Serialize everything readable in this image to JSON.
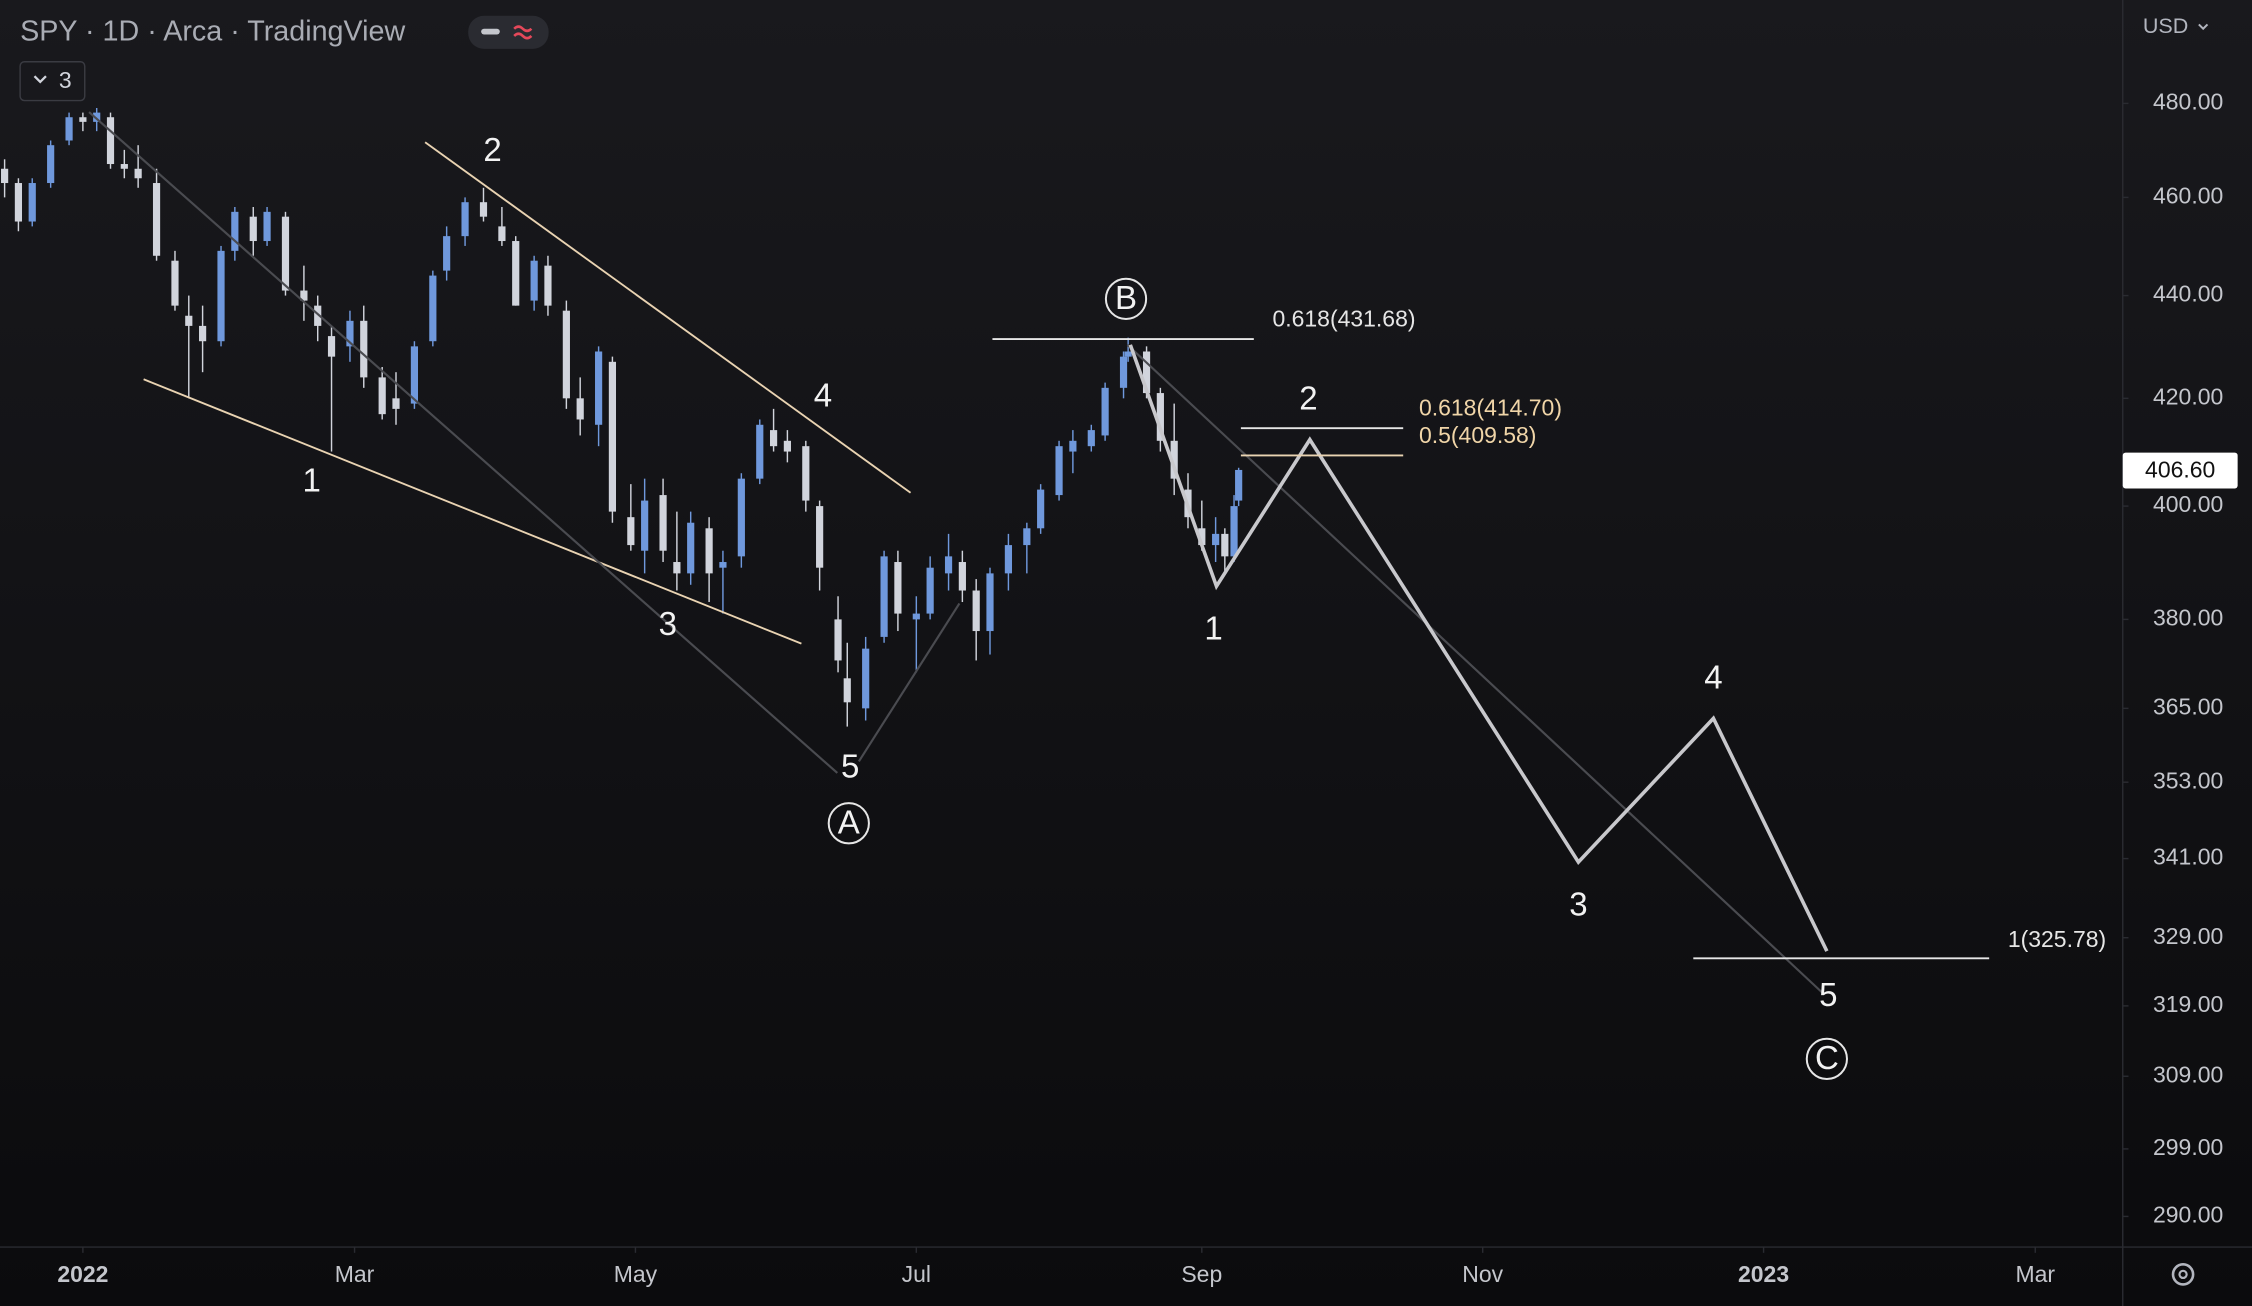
{
  "chart_data": {
    "type": "candlestick",
    "title": "SPY · 1D · Arca · TradingView",
    "indicator_count": "3",
    "currency": "USD",
    "last_price_label": "406.60",
    "log_scale": true,
    "up_color": "#6f98dc",
    "down_color": "#d1d4dc",
    "x": [
      -17,
      -14,
      -11,
      -7,
      -3,
      0,
      3,
      6,
      9,
      12,
      16,
      20,
      23,
      26,
      30,
      33,
      37,
      40,
      44,
      48,
      51,
      54,
      58,
      61,
      65,
      68,
      72,
      76,
      79,
      83,
      87,
      91,
      94,
      98,
      101,
      105,
      108,
      112,
      115,
      119,
      122,
      126,
      129,
      132,
      136,
      139,
      143,
      147,
      150,
      153,
      157,
      160,
      164,
      166,
      170,
      174,
      177,
      181,
      184,
      188,
      191,
      194,
      197,
      201,
      205,
      208,
      212,
      215,
      219,
      222,
      226,
      227,
      231,
      234,
      237,
      240,
      243,
      246,
      248,
      250,
      251
    ],
    "open": [
      466,
      463,
      455,
      463,
      472,
      477,
      476,
      477,
      467,
      466,
      463,
      447,
      436,
      434,
      431,
      449,
      456,
      451,
      456,
      441,
      438,
      432,
      430,
      435,
      424,
      420,
      419,
      431,
      445,
      452,
      459,
      454,
      451,
      439,
      446,
      437,
      420,
      415,
      427,
      398,
      392,
      402,
      390,
      388,
      396,
      389,
      391,
      405,
      414,
      412,
      411,
      400,
      380,
      370,
      365,
      377,
      390,
      380,
      381,
      388,
      390,
      385,
      378,
      388,
      393,
      396,
      402,
      410,
      411,
      413,
      422,
      428,
      429,
      421,
      412,
      403,
      396,
      393,
      395,
      391,
      401
    ],
    "high": [
      468,
      464,
      464,
      472,
      478,
      478,
      479,
      478,
      470,
      471,
      466,
      449,
      440,
      438,
      450,
      458,
      458,
      458,
      457,
      446,
      440,
      434,
      437,
      438,
      426,
      425,
      431,
      445,
      454,
      460,
      462,
      458,
      452,
      448,
      448,
      439,
      424,
      430,
      428,
      404,
      405,
      405,
      399,
      399,
      398,
      392,
      406,
      416,
      418,
      414,
      412,
      401,
      384,
      376,
      377,
      392,
      392,
      384,
      391,
      395,
      392,
      387,
      389,
      395,
      397,
      404,
      412,
      414,
      415,
      423,
      429,
      431.7,
      430,
      422,
      419,
      406,
      401,
      398,
      396,
      402,
      407
    ],
    "low": [
      460,
      453,
      454,
      462,
      471,
      474,
      474,
      466,
      464,
      462,
      447,
      437,
      420,
      425,
      430,
      447,
      448,
      450,
      440,
      435,
      431,
      410,
      427,
      422,
      416,
      415,
      418,
      430,
      443,
      450,
      455,
      450,
      438,
      437,
      436,
      418,
      413,
      411,
      397,
      392,
      388,
      390,
      385,
      386,
      383,
      381,
      389,
      404,
      410,
      408,
      399,
      385,
      371,
      362,
      363,
      376,
      378,
      371,
      380,
      385,
      383,
      373,
      374,
      385,
      388,
      395,
      401,
      406,
      410,
      412,
      420,
      427,
      420,
      410,
      402,
      396,
      392,
      390,
      388,
      390,
      400
    ],
    "close": [
      463,
      455,
      463,
      471,
      477,
      476,
      478,
      467,
      466,
      464,
      448,
      438,
      434,
      431,
      449,
      457,
      451,
      457,
      441,
      439,
      434,
      428,
      435,
      424,
      417,
      418,
      430,
      444,
      452,
      459,
      456,
      451,
      438,
      447,
      438,
      420,
      416,
      429,
      399,
      393,
      401,
      392,
      388,
      397,
      388,
      390,
      405,
      415,
      411,
      410,
      401,
      389,
      373,
      366,
      375,
      391,
      381,
      381,
      389,
      391,
      385,
      378,
      388,
      393,
      396,
      403,
      411,
      412,
      414,
      422,
      428,
      429,
      421,
      412,
      405,
      398,
      393,
      395,
      391,
      400,
      406.6
    ],
    "xlim": [
      -18,
      443
    ],
    "xticks": [
      {
        "value": 0,
        "label": "2022"
      },
      {
        "value": 59,
        "label": "Mar"
      },
      {
        "value": 120,
        "label": "May"
      },
      {
        "value": 181,
        "label": "Jul"
      },
      {
        "value": 243,
        "label": "Sep"
      },
      {
        "value": 304,
        "label": "Nov"
      },
      {
        "value": 365,
        "label": "2023"
      },
      {
        "value": 424,
        "label": "Mar"
      }
    ],
    "ylim": [
      286,
      503
    ],
    "yticks": [
      {
        "value": 480,
        "label": "480.00"
      },
      {
        "value": 460,
        "label": "460.00"
      },
      {
        "value": 440,
        "label": "440.00"
      },
      {
        "value": 420,
        "label": "420.00"
      },
      {
        "value": 400,
        "label": "400.00"
      },
      {
        "value": 380,
        "label": "380.00"
      },
      {
        "value": 365,
        "label": "365.00"
      },
      {
        "value": 353,
        "label": "353.00"
      },
      {
        "value": 341,
        "label": "341.00"
      },
      {
        "value": 329,
        "label": "329.00"
      },
      {
        "value": 319,
        "label": "319.00"
      },
      {
        "value": 309,
        "label": "309.00"
      },
      {
        "value": 299,
        "label": "299.00"
      },
      {
        "value": 290,
        "label": "290.00"
      }
    ],
    "wave_labels": [
      "1",
      "2",
      "3",
      "4",
      "5",
      "A",
      "B",
      "1",
      "2",
      "3",
      "4",
      "5",
      "C"
    ],
    "fib_labels": [
      "0.618(431.68)",
      "0.618(414.70)",
      "0.5(409.58)",
      "1(325.78)"
    ]
  }
}
